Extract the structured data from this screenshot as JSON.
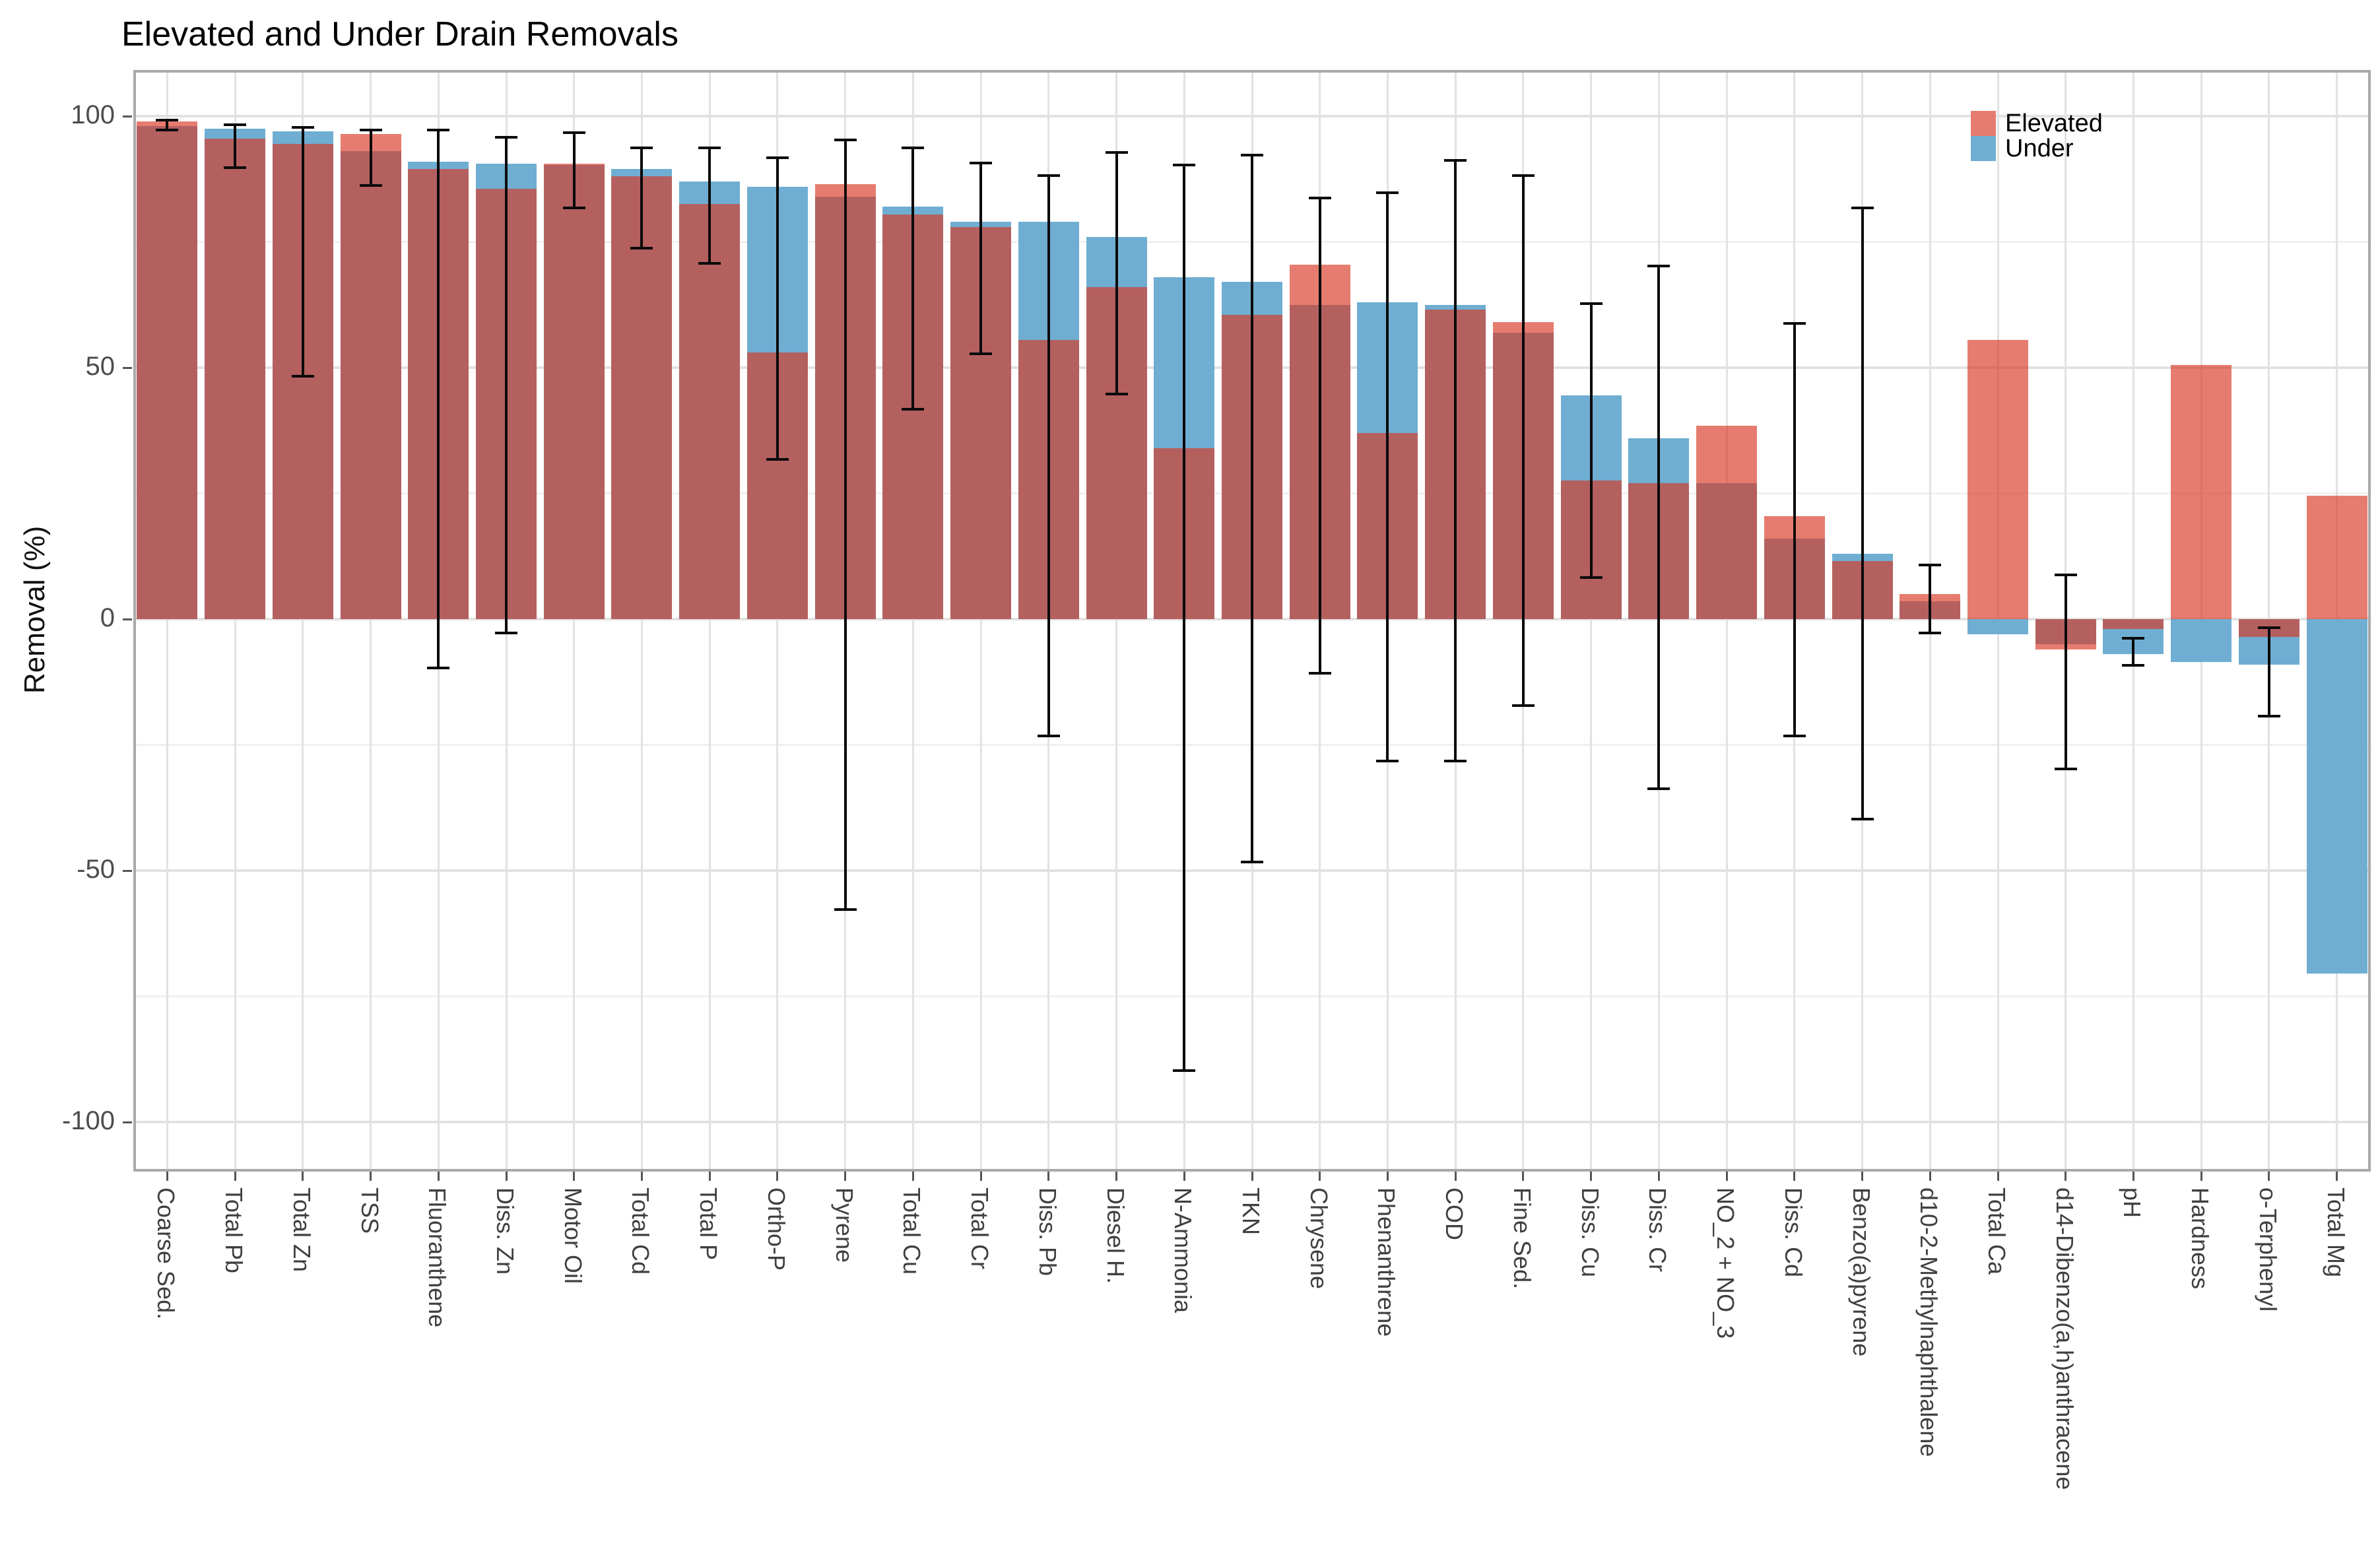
{
  "title": "Elevated and Under Drain Removals",
  "y_axis": {
    "label": "Removal (%)",
    "ticks": [
      100,
      50,
      0,
      -50,
      -100
    ],
    "minor_ticks": [
      75,
      25,
      -25,
      -75
    ]
  },
  "legend": {
    "items": [
      {
        "label": "Elevated",
        "color": "#E67C6F"
      },
      {
        "label": "Under",
        "color": "#6FAED2"
      }
    ]
  },
  "colors": {
    "elevated_legend": "#E67C6F",
    "elevated_overlay": "rgba(217,53,34,0.65)",
    "under": "#6FAED2",
    "overlap": "#B46060",
    "error_bar": "#0a0a0a",
    "grid_major": "#e2e2e2",
    "grid_minor": "#f0f0f0",
    "panel_border": "#a9a9a9",
    "axis_text": "#4d4d4d"
  },
  "chart_data": {
    "type": "bar",
    "title": "Elevated and Under Drain Removals",
    "xlabel": "",
    "ylabel": "Removal (%)",
    "ylim": [
      -109,
      109
    ],
    "grid": "on",
    "legend_position": "top-right",
    "bar_style": "overlapping (position identity, semi-transparent elevated over under)",
    "categories": [
      "Coarse Sed.",
      "Total Pb",
      "Total Zn",
      "TSS",
      "Fluoranthene",
      "Diss. Zn",
      "Motor Oil",
      "Total Cd",
      "Total P",
      "Ortho-P",
      "Pyrene",
      "Total Cu",
      "Total Cr",
      "Diss. Pb",
      "Diesel H.",
      "N-Ammonia",
      "TKN",
      "Chrysene",
      "Phenanthrene",
      "COD",
      "Fine Sed.",
      "Diss. Cu",
      "Diss. Cr",
      "NO_2 + NO_3",
      "Diss. Cd",
      "Benzo(a)pyrene",
      "d10-2-Methylnaphthalene",
      "Total Ca",
      "d14-Dibenzo(a,h)anthracene",
      "pH",
      "Hardness",
      "o-Terphenyl",
      "Total Mg"
    ],
    "series": [
      {
        "name": "Elevated",
        "values": [
          99,
          95.5,
          94.5,
          96.5,
          89.5,
          85.5,
          90.5,
          88,
          82.5,
          53,
          86.5,
          80.5,
          78,
          55.5,
          66,
          34,
          60.5,
          70.5,
          37,
          61.5,
          59,
          27.5,
          27,
          38.5,
          20.5,
          11.5,
          5,
          55.5,
          -6,
          -2,
          50.5,
          -3.5,
          24.5
        ]
      },
      {
        "name": "Under",
        "values": [
          98,
          97.5,
          97,
          93,
          91,
          90.5,
          90.3,
          89.5,
          87,
          86,
          84,
          82,
          79,
          79,
          76,
          68,
          67,
          62.5,
          63,
          62.5,
          57,
          44.5,
          36,
          27,
          16,
          13,
          3.5,
          -3,
          -5,
          -7,
          -8.5,
          -9,
          -70.5
        ]
      }
    ],
    "error_bars": {
      "low": [
        97,
        89.5,
        48,
        86,
        -10,
        -3,
        81.5,
        73.5,
        70.5,
        31.5,
        -58,
        41.5,
        52.5,
        -23.5,
        44.5,
        -90,
        -48.5,
        -11,
        -28.5,
        -28.5,
        -17.5,
        8,
        -34,
        null,
        -23.5,
        -40,
        -3,
        null,
        -30,
        -9.5,
        null,
        -19.5,
        null
      ],
      "high": [
        99.5,
        98.5,
        98,
        97.5,
        97.5,
        96,
        97,
        94,
        94,
        92,
        95.5,
        94,
        91,
        88.5,
        93,
        90.5,
        92.5,
        84,
        85,
        91.5,
        88.5,
        63,
        70.5,
        null,
        59,
        82,
        11,
        null,
        9,
        -3.5,
        null,
        -1.5,
        null
      ]
    }
  }
}
